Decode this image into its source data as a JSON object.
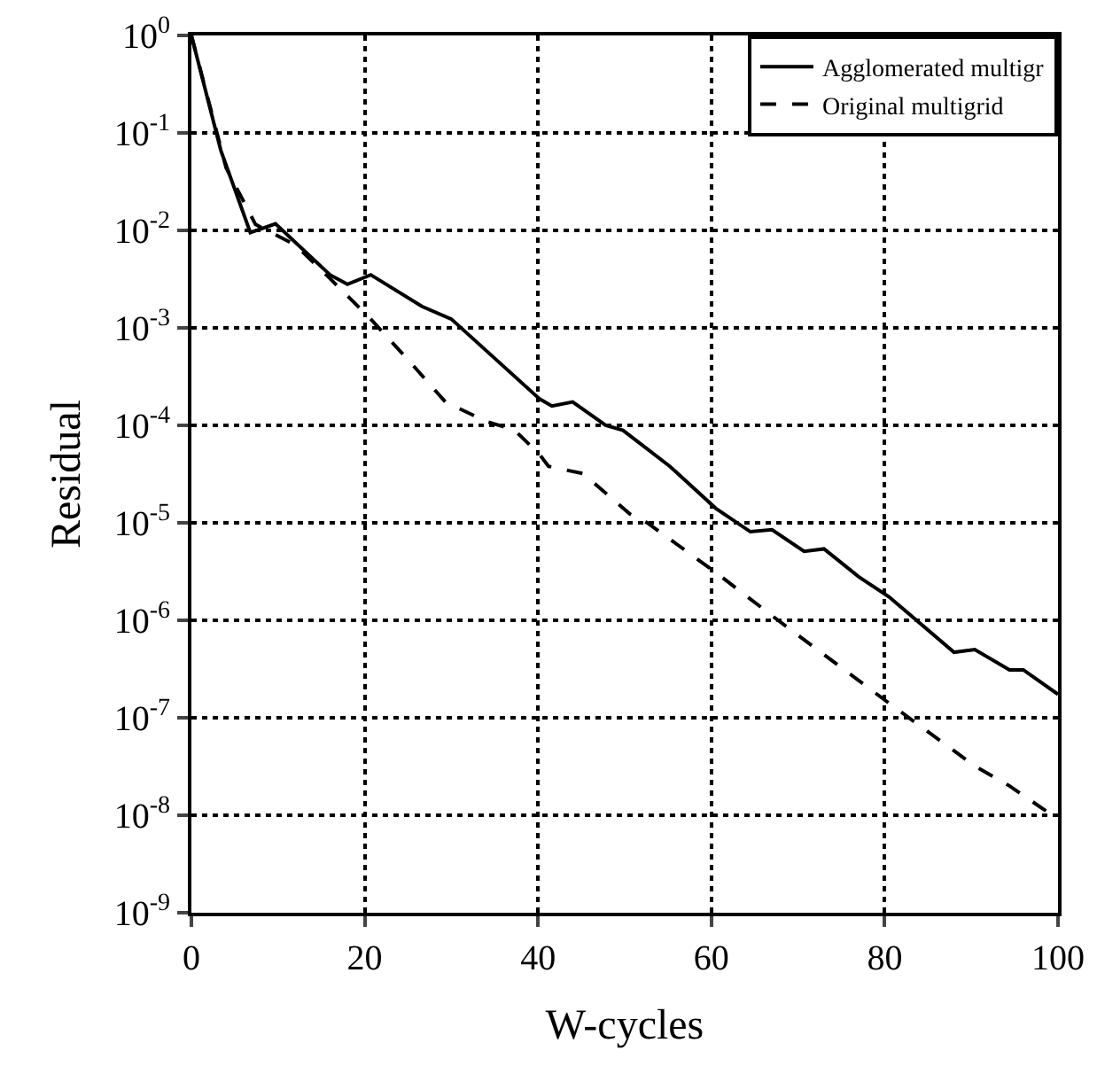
{
  "chart_data": {
    "type": "line",
    "xlabel": "W-cycles",
    "ylabel": "Residual",
    "log": "y",
    "grid": true,
    "legend": "top right",
    "marker": "none",
    "xlim": [
      0,
      100
    ],
    "xticks": [
      0,
      20,
      40,
      60,
      80,
      100
    ],
    "ylim": [
      1e-09,
      1
    ],
    "yticks": [
      {
        "value": 1,
        "label": "10$^{0}$"
      },
      {
        "value": 0.1,
        "label": "10$^{-1}$"
      },
      {
        "value": 0.01,
        "label": "10$^{-2}$"
      },
      {
        "value": 0.001,
        "label": "10$^{-3}$"
      },
      {
        "value": 0.0001,
        "label": "10$^{-4}$"
      },
      {
        "value": 1e-05,
        "label": "10$^{-5}$"
      },
      {
        "value": 1e-06,
        "label": "10$^{-6}$"
      },
      {
        "value": 1e-07,
        "label": "10$^{-7}$"
      },
      {
        "value": 1e-08,
        "label": "10$^{-8}$"
      },
      {
        "value": 1e-09,
        "label": "10$^{-9}$"
      }
    ],
    "series": [
      {
        "name": "Agglomerated multigr",
        "color": "#000000",
        "line_style": "solid",
        "x": [
          0,
          3.4,
          6.8,
          9.7,
          16,
          18,
          20.7,
          26.6,
          30,
          40.2,
          41.6,
          44,
          47.8,
          49.8,
          55.2,
          60.5,
          64.5,
          67,
          70.7,
          73,
          77,
          80.5,
          88,
          90.4,
          94.4,
          96,
          100
        ],
        "values": [
          1,
          0.066,
          0.0095,
          0.0117,
          0.0035,
          0.0028,
          0.0035,
          0.00166,
          0.00123,
          0.000186,
          0.000158,
          0.000174,
          0.0001,
          8.9e-05,
          3.8e-05,
          1.41e-05,
          8.1e-06,
          8.5e-06,
          5.1e-06,
          5.4e-06,
          2.8e-06,
          1.74e-06,
          4.7e-07,
          5e-07,
          3.1e-07,
          3.1e-07,
          1.74e-07
        ]
      },
      {
        "name": "Original multigrid",
        "color": "#000000",
        "line_style": "dashed",
        "x": [
          0,
          4,
          7.4,
          12,
          16,
          20.7,
          25.3,
          29.3,
          34,
          37.3,
          40.2,
          41.2,
          45.2,
          50.6,
          52.6,
          60.5,
          67.7,
          80.5,
          90.4,
          94.4,
          100
        ],
        "values": [
          1,
          0.044,
          0.0115,
          0.0071,
          0.0032,
          0.00123,
          0.00044,
          0.000174,
          0.00011,
          8.9e-05,
          5e-05,
          3.8e-05,
          3.2e-05,
          1.23e-05,
          1e-05,
          3.1e-06,
          1e-06,
          1.41e-07,
          3.2e-08,
          2e-08,
          9.1e-09
        ]
      }
    ]
  }
}
